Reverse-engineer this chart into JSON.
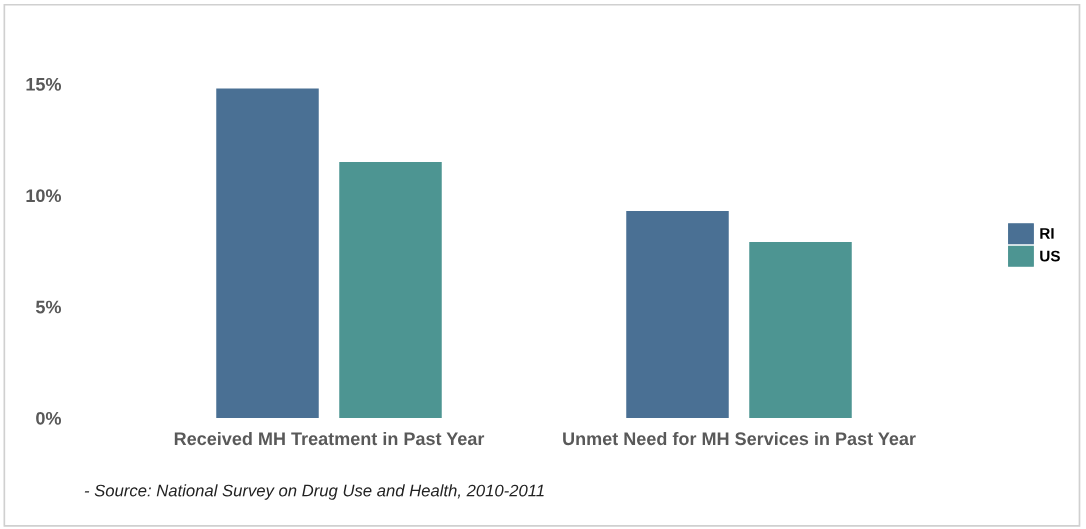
{
  "chart_data": {
    "type": "bar",
    "categories": [
      "Received MH Treatment in Past Year",
      "Unmet Need for MH Services in Past Year"
    ],
    "series": [
      {
        "name": "RI",
        "color": "#4a7094",
        "values": [
          14.8,
          9.3
        ]
      },
      {
        "name": "US",
        "color": "#4d9592",
        "values": [
          11.5,
          7.9
        ]
      }
    ],
    "ylim": [
      0,
      15
    ],
    "yticks": [
      {
        "value": 0,
        "label": "0%"
      },
      {
        "value": 5,
        "label": "5%"
      },
      {
        "value": 10,
        "label": "10%"
      },
      {
        "value": 15,
        "label": "15%"
      }
    ],
    "grid": false,
    "legend": "right",
    "annotations": [
      "- Source: National Survey on Drug Use and Health, 2010-2011"
    ]
  }
}
